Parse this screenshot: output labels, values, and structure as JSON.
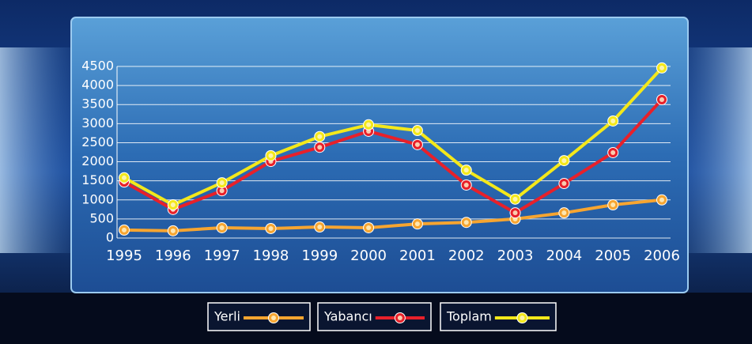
{
  "chart_data": {
    "type": "line",
    "categories": [
      "1995",
      "1996",
      "1997",
      "1998",
      "1999",
      "2000",
      "2001",
      "2002",
      "2003",
      "2004",
      "2005",
      "2006"
    ],
    "series": [
      {
        "name": "Yerli",
        "color": "#f7a530",
        "values": [
          210,
          190,
          270,
          250,
          290,
          270,
          370,
          410,
          500,
          660,
          870,
          1000
        ]
      },
      {
        "name": "Yabancı",
        "color": "#e8202a",
        "values": [
          1470,
          750,
          1240,
          2010,
          2380,
          2800,
          2450,
          1390,
          660,
          1430,
          2240,
          3630
        ]
      },
      {
        "name": "Toplam",
        "color": "#f4e81a",
        "values": [
          1580,
          870,
          1450,
          2160,
          2660,
          2970,
          2820,
          1780,
          1020,
          2030,
          3070,
          4460
        ]
      }
    ],
    "ylim": [
      0,
      4500
    ],
    "yticks": [
      0,
      500,
      1000,
      1500,
      2000,
      2500,
      3000,
      3500,
      4000,
      4500
    ],
    "grid": true
  }
}
